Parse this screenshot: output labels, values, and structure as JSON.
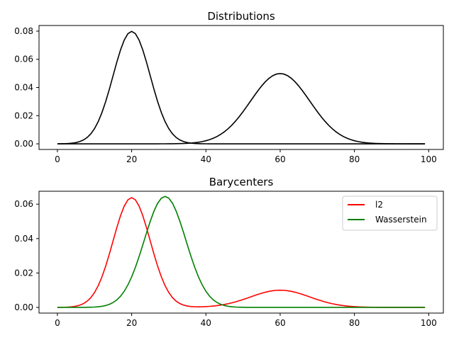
{
  "chart_data": [
    {
      "type": "line",
      "title": "Distributions",
      "xlabel": "",
      "ylabel": "",
      "xlim": [
        -4.95,
        103.95
      ],
      "ylim": [
        -0.004,
        0.084
      ],
      "xticks": [
        0,
        20,
        40,
        60,
        80,
        100
      ],
      "yticks": [
        0.0,
        0.02,
        0.04,
        0.06,
        0.08
      ],
      "ytick_labels": [
        "0.00",
        "0.02",
        "0.04",
        "0.06",
        "0.08"
      ],
      "legend": null,
      "grid": false,
      "series": [
        {
          "color": "#000000",
          "x_range": [
            0,
            99
          ],
          "mean": 20,
          "std": 5,
          "peak": 0.0798
        },
        {
          "color": "#000000",
          "x_range": [
            0,
            99
          ],
          "mean": 60,
          "std": 8,
          "peak": 0.0499
        }
      ]
    },
    {
      "type": "line",
      "title": "Barycenters",
      "xlabel": "",
      "ylabel": "",
      "xlim": [
        -4.95,
        103.95
      ],
      "ylim": [
        -0.0033,
        0.0675
      ],
      "xticks": [
        0,
        20,
        40,
        60,
        80,
        100
      ],
      "yticks": [
        0.0,
        0.02,
        0.04,
        0.06
      ],
      "ytick_labels": [
        "0.00",
        "0.02",
        "0.04",
        "0.06"
      ],
      "legend": "top-right",
      "grid": false,
      "series": [
        {
          "name": "l2",
          "color": "#ff0000",
          "x_range": [
            0,
            99
          ],
          "components": [
            {
              "mean": 20,
              "std": 5,
              "peak": 0.0638
            },
            {
              "mean": 60,
              "std": 8,
              "peak": 0.01
            }
          ]
        },
        {
          "name": "Wasserstein",
          "color": "#008000",
          "x_range": [
            0,
            99
          ],
          "components": [
            {
              "mean": 29,
              "std": 5.6,
              "peak": 0.0645
            }
          ]
        }
      ]
    }
  ]
}
